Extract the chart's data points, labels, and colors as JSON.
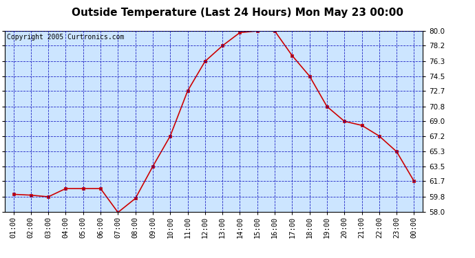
{
  "title": "Outside Temperature (Last 24 Hours) Mon May 23 00:00",
  "copyright": "Copyright 2005 Curtronics.com",
  "x_labels": [
    "01:00",
    "02:00",
    "03:00",
    "04:00",
    "05:00",
    "06:00",
    "07:00",
    "08:00",
    "09:00",
    "10:00",
    "11:00",
    "12:00",
    "13:00",
    "14:00",
    "15:00",
    "16:00",
    "17:00",
    "18:00",
    "19:00",
    "20:00",
    "21:00",
    "22:00",
    "23:00",
    "00:00"
  ],
  "y_values": [
    60.1,
    60.0,
    59.8,
    60.8,
    60.8,
    60.8,
    57.9,
    59.6,
    63.5,
    67.2,
    72.7,
    76.3,
    78.2,
    79.8,
    80.0,
    80.0,
    77.0,
    74.5,
    70.8,
    69.0,
    68.5,
    67.2,
    65.3,
    61.7
  ],
  "ylim_min": 58.0,
  "ylim_max": 80.0,
  "y_ticks": [
    58.0,
    59.8,
    61.7,
    63.5,
    65.3,
    67.2,
    69.0,
    70.8,
    72.7,
    74.5,
    76.3,
    78.2,
    80.0
  ],
  "line_color": "#cc0000",
  "marker_color": "#cc0000",
  "bg_color": "#cce5ff",
  "grid_color": "#0000bb",
  "title_fontsize": 11,
  "copyright_fontsize": 7,
  "tick_fontsize": 7.5,
  "title_color": "#000000",
  "fig_bg": "#ffffff"
}
